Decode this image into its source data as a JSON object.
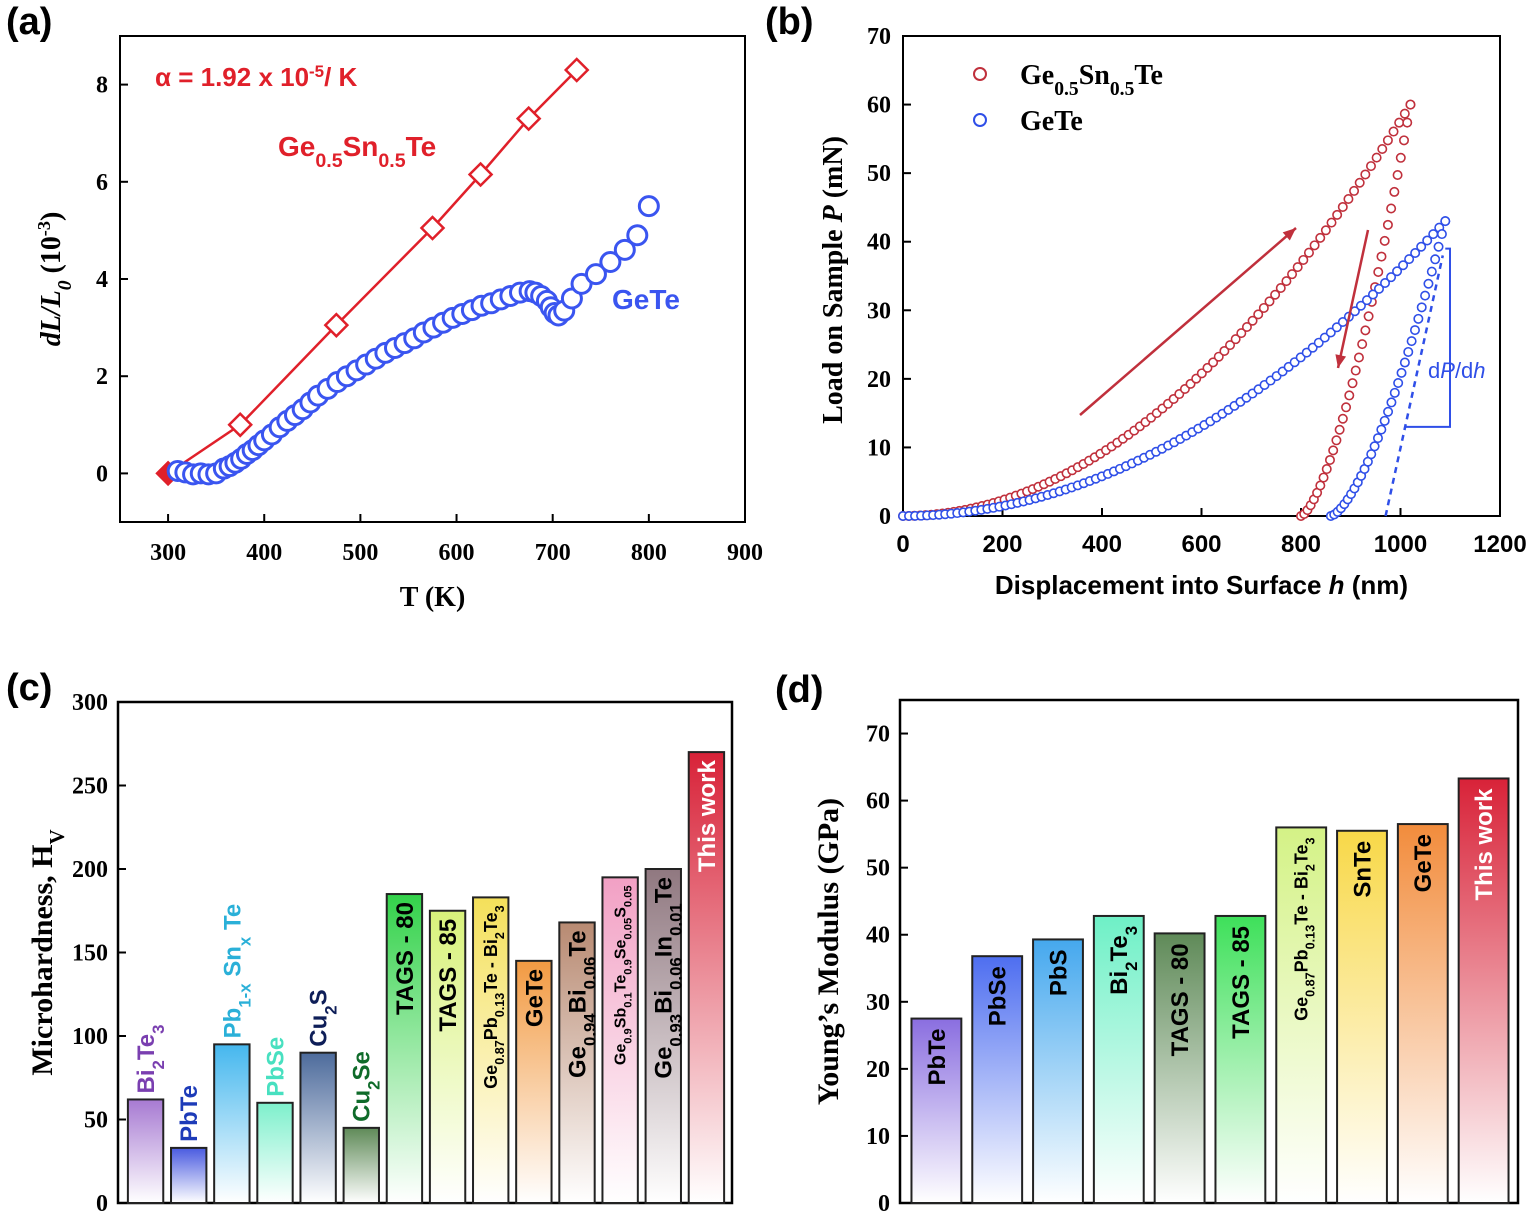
{
  "chart_data": [
    {
      "panel": "(a)",
      "type": "line",
      "xlabel": "T (K)",
      "ylabel_parts": [
        "dL/L",
        "0",
        " (10",
        "-3",
        ")"
      ],
      "xlim": [
        250,
        900
      ],
      "ylim": [
        -1,
        9
      ],
      "xticks": [
        300,
        400,
        500,
        600,
        700,
        800,
        900
      ],
      "yticks": [
        0,
        2,
        4,
        6,
        8
      ],
      "annotation": {
        "prefix": "α = 1.92 x 10",
        "sup": "-5",
        "suffix": "/ K"
      },
      "series": [
        {
          "name": "Ge0.5Sn0.5Te",
          "label_parts": [
            "Ge",
            "0.5",
            "Sn",
            "0.5",
            "Te"
          ],
          "color": "#e0202a",
          "marker": "diamond",
          "x": [
            300,
            375,
            475,
            575,
            625,
            675,
            725
          ],
          "y": [
            0,
            1.0,
            3.05,
            5.05,
            6.15,
            7.3,
            8.3
          ]
        },
        {
          "name": "GeTe",
          "label_parts": [
            "GeTe"
          ],
          "color": "#3a55f0",
          "marker": "circle",
          "x": [
            310,
            318,
            326,
            334,
            342,
            350,
            358,
            364,
            370,
            376,
            382,
            388,
            394,
            400,
            408,
            416,
            424,
            432,
            440,
            448,
            456,
            466,
            476,
            486,
            496,
            506,
            516,
            526,
            536,
            546,
            556,
            566,
            576,
            586,
            596,
            606,
            616,
            626,
            636,
            646,
            656,
            666,
            676,
            682,
            688,
            694,
            698,
            702,
            706,
            712,
            720,
            730,
            745,
            760,
            775,
            788,
            800
          ],
          "y": [
            0.05,
            0.02,
            -0.02,
            0.0,
            -0.02,
            0.0,
            0.1,
            0.15,
            0.22,
            0.3,
            0.4,
            0.48,
            0.58,
            0.68,
            0.8,
            0.95,
            1.08,
            1.2,
            1.32,
            1.46,
            1.6,
            1.74,
            1.88,
            2.0,
            2.12,
            2.24,
            2.36,
            2.48,
            2.58,
            2.68,
            2.78,
            2.9,
            3.0,
            3.1,
            3.2,
            3.28,
            3.36,
            3.45,
            3.5,
            3.58,
            3.65,
            3.72,
            3.75,
            3.72,
            3.65,
            3.55,
            3.42,
            3.3,
            3.25,
            3.35,
            3.6,
            3.9,
            4.1,
            4.35,
            4.6,
            4.9,
            5.5
          ]
        }
      ]
    },
    {
      "panel": "(b)",
      "type": "scatter",
      "xlabel_parts": [
        "Displacement into Surface ",
        "h",
        " (nm)"
      ],
      "ylabel_parts": [
        "Load on Sample ",
        "P",
        " (mN)"
      ],
      "xlim": [
        0,
        1200
      ],
      "ylim": [
        0,
        70
      ],
      "xticks": [
        0,
        200,
        400,
        600,
        800,
        1000,
        1200
      ],
      "yticks": [
        0,
        10,
        20,
        30,
        40,
        50,
        60,
        70
      ],
      "annotation_parts": [
        "d",
        "P",
        "/d",
        "h"
      ],
      "series": [
        {
          "name": "Ge0.5Sn0.5Te",
          "label_parts": [
            "Ge",
            "0.5",
            "Sn",
            "0.5",
            "Te"
          ],
          "color": "#c0303c",
          "marker": "open-circle",
          "loading": {
            "h_max": 1020,
            "p_max": 60
          },
          "unloading": {
            "h_final": 800,
            "h_max": 1020,
            "p_max": 60
          }
        },
        {
          "name": "GeTe",
          "label_parts": [
            "GeTe"
          ],
          "color": "#2f4fe8",
          "marker": "open-circle",
          "loading": {
            "h_max": 1090,
            "p_max": 43
          },
          "unloading": {
            "h_final": 860,
            "h_max": 1090,
            "p_max": 43
          }
        }
      ]
    },
    {
      "panel": "(c)",
      "type": "bar",
      "ylabel": "Microhardness, H",
      "ylabel_sub": "V",
      "ylim": [
        0,
        300
      ],
      "yticks": [
        0,
        50,
        100,
        150,
        200,
        250,
        300
      ],
      "categories": [
        {
          "parts": [
            [
              "Bi",
              ""
            ],
            [
              "2",
              "sub"
            ],
            [
              "Te",
              ""
            ],
            [
              "3",
              "sub"
            ]
          ],
          "color": "#7a3fb0",
          "size": 24
        },
        {
          "parts": [
            [
              "PbTe",
              ""
            ]
          ],
          "color": "#1d3bb8",
          "size": 24
        },
        {
          "parts": [
            [
              "Pb",
              ""
            ],
            [
              "1-x",
              "sub"
            ],
            [
              " Sn",
              ""
            ],
            [
              "x",
              "sub"
            ],
            [
              " Te",
              ""
            ]
          ],
          "color": "#2ab0d8",
          "size": 24
        },
        {
          "parts": [
            [
              "PbSe",
              ""
            ]
          ],
          "color": "#48e0c0",
          "size": 24
        },
        {
          "parts": [
            [
              "Cu",
              ""
            ],
            [
              "2",
              "sub"
            ],
            [
              "S",
              ""
            ]
          ],
          "color": "#0e1e58",
          "size": 24
        },
        {
          "parts": [
            [
              "Cu",
              ""
            ],
            [
              "2",
              "sub"
            ],
            [
              "Se",
              ""
            ]
          ],
          "color": "#0f6b2a",
          "size": 24
        },
        {
          "parts": [
            [
              "TAGS - 80",
              ""
            ]
          ],
          "color": "#000000",
          "size": 24
        },
        {
          "parts": [
            [
              "TAGS - 85",
              ""
            ]
          ],
          "color": "#000000",
          "size": 24
        },
        {
          "parts": [
            [
              "Ge",
              ""
            ],
            [
              "0.87",
              "sub"
            ],
            [
              "Pb",
              ""
            ],
            [
              "0.13",
              "sub"
            ],
            [
              "Te - Bi",
              ""
            ],
            [
              "2",
              "sub"
            ],
            [
              "Te",
              ""
            ],
            [
              "3",
              "sub"
            ]
          ],
          "color": "#000000",
          "size": 18
        },
        {
          "parts": [
            [
              "GeTe",
              ""
            ]
          ],
          "color": "#000000",
          "size": 24
        },
        {
          "parts": [
            [
              "Ge",
              ""
            ],
            [
              "0.94",
              "sub"
            ],
            [
              "Bi",
              ""
            ],
            [
              "0.06",
              "sub"
            ],
            [
              "Te",
              ""
            ]
          ],
          "color": "#000000",
          "size": 24
        },
        {
          "parts": [
            [
              "Ge",
              ""
            ],
            [
              "0.9",
              "sub"
            ],
            [
              "Sb",
              ""
            ],
            [
              "0.1",
              "sub"
            ],
            [
              "Te",
              ""
            ],
            [
              "0.9",
              "sub"
            ],
            [
              "Se",
              ""
            ],
            [
              "0.05",
              "sub"
            ],
            [
              "S",
              ""
            ],
            [
              "0.05",
              "sub"
            ]
          ],
          "color": "#000000",
          "size": 16
        },
        {
          "parts": [
            [
              "Ge",
              ""
            ],
            [
              "0.93",
              "sub"
            ],
            [
              "Bi",
              ""
            ],
            [
              "0.06",
              "sub"
            ],
            [
              "In",
              ""
            ],
            [
              "0.01",
              "sub"
            ],
            [
              "Te",
              ""
            ]
          ],
          "color": "#000000",
          "size": 24
        },
        {
          "parts": [
            [
              "This work",
              ""
            ]
          ],
          "color": "#ffffff",
          "size": 24
        }
      ],
      "values": [
        62,
        33,
        95,
        60,
        90,
        45,
        185,
        175,
        183,
        145,
        168,
        195,
        200,
        270
      ],
      "bar_colors": [
        "#a77ad2",
        "#4a5be0",
        "#45b7ee",
        "#7ef0cc",
        "#4d6b9c",
        "#5f8a58",
        "#33d24a",
        "#d8f27a",
        "#f4e05a",
        "#f29a42",
        "#b88a72",
        "#f2a0c4",
        "#907880",
        "#d82238"
      ]
    },
    {
      "panel": "(d)",
      "type": "bar",
      "ylabel": "Young’s Modulus (GPa)",
      "ylim": [
        0,
        75
      ],
      "yticks": [
        0,
        10,
        20,
        30,
        40,
        50,
        60,
        70
      ],
      "categories": [
        {
          "parts": [
            [
              "PbTe",
              ""
            ]
          ],
          "color": "#000000",
          "size": 24
        },
        {
          "parts": [
            [
              "PbSe",
              ""
            ]
          ],
          "color": "#000000",
          "size": 24
        },
        {
          "parts": [
            [
              "PbS",
              ""
            ]
          ],
          "color": "#000000",
          "size": 24
        },
        {
          "parts": [
            [
              "Bi",
              ""
            ],
            [
              "2",
              "sub"
            ],
            [
              "Te",
              ""
            ],
            [
              "3",
              "sub"
            ]
          ],
          "color": "#000000",
          "size": 24
        },
        {
          "parts": [
            [
              "TAGS - 80",
              ""
            ]
          ],
          "color": "#000000",
          "size": 24
        },
        {
          "parts": [
            [
              "TAGS - 85",
              ""
            ]
          ],
          "color": "#000000",
          "size": 24
        },
        {
          "parts": [
            [
              "Ge",
              ""
            ],
            [
              "0.87",
              "sub"
            ],
            [
              "Pb",
              ""
            ],
            [
              "0.13",
              "sub"
            ],
            [
              "Te - Bi",
              ""
            ],
            [
              "2",
              "sub"
            ],
            [
              "Te",
              ""
            ],
            [
              "3",
              "sub"
            ]
          ],
          "color": "#000000",
          "size": 18
        },
        {
          "parts": [
            [
              "SnTe",
              ""
            ]
          ],
          "color": "#000000",
          "size": 24
        },
        {
          "parts": [
            [
              "GeTe",
              ""
            ]
          ],
          "color": "#000000",
          "size": 24
        },
        {
          "parts": [
            [
              "This work",
              ""
            ]
          ],
          "color": "#ffffff",
          "size": 24
        }
      ],
      "values": [
        27.5,
        36.8,
        39.3,
        42.8,
        40.2,
        42.8,
        56,
        55.5,
        56.5,
        63.3
      ],
      "bar_colors": [
        "#8a6ee0",
        "#4e6ef0",
        "#45a8ee",
        "#6ef0c6",
        "#5f8a58",
        "#3ee05a",
        "#d4f286",
        "#f8d848",
        "#f28c3c",
        "#d82238"
      ]
    }
  ]
}
